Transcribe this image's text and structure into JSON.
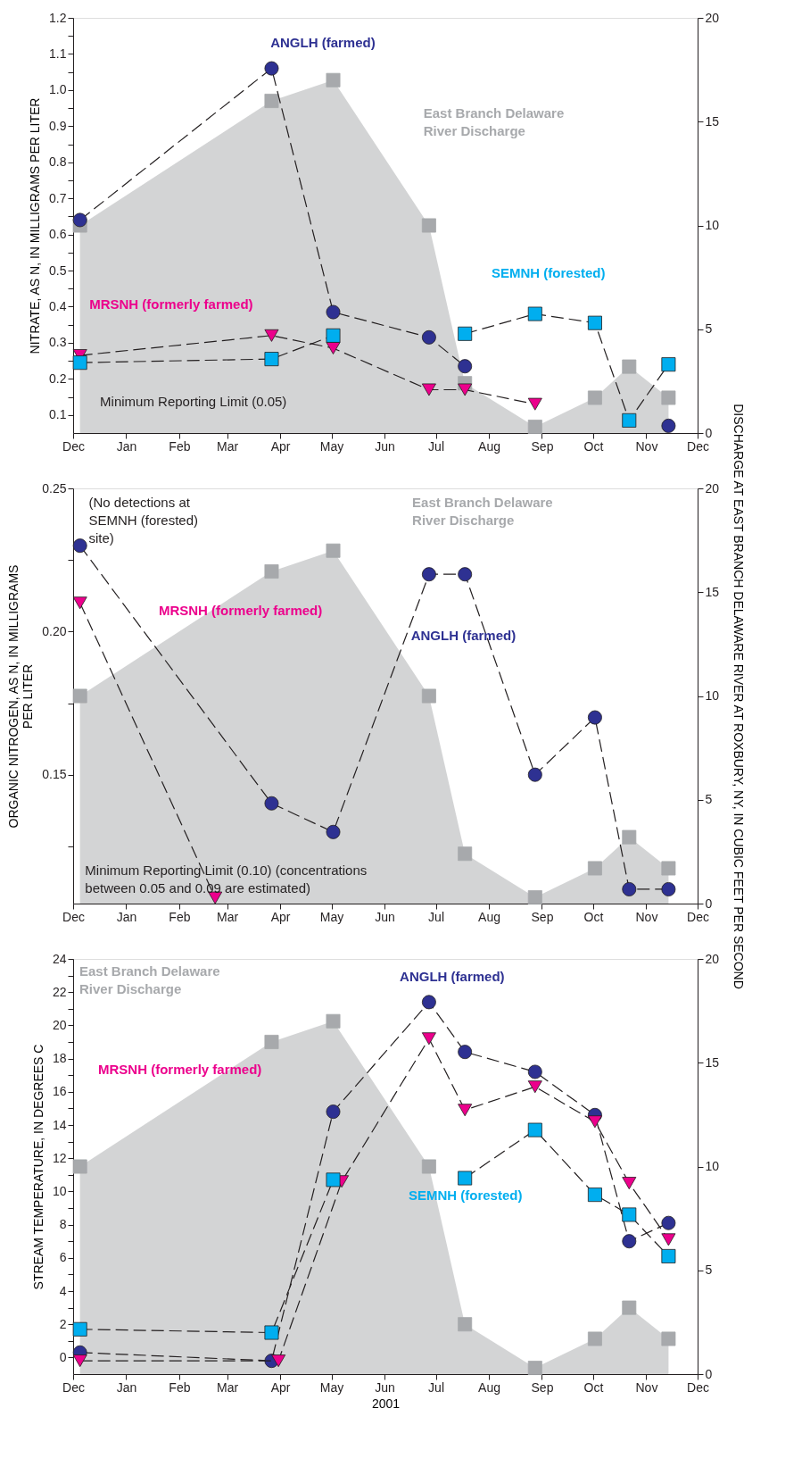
{
  "chart_data": [
    {
      "type": "line",
      "ylabel": "NITRATE, AS N, IN MILLIGRAMS PER LITER",
      "x": [
        "2000-12-05",
        "2001-03-27",
        "2001-05-02",
        "2001-06-27",
        "2001-07-18",
        "2001-08-28",
        "2001-10-02",
        "2001-10-22",
        "2001-11-14"
      ],
      "xlim": [
        "2000-12-01",
        "2001-12-01"
      ],
      "xticks": [
        {
          "value": "2000-12-01",
          "label": "Dec"
        },
        {
          "value": "2001-01-01",
          "label": "Jan"
        },
        {
          "value": "2001-02-01",
          "label": "Feb"
        },
        {
          "value": "2001-03-01",
          "label": "Mar"
        },
        {
          "value": "2001-04-01",
          "label": "Apr"
        },
        {
          "value": "2001-05-01",
          "label": "May"
        },
        {
          "value": "2001-06-01",
          "label": "Jun"
        },
        {
          "value": "2001-07-01",
          "label": "Jul"
        },
        {
          "value": "2001-08-01",
          "label": "Aug"
        },
        {
          "value": "2001-09-01",
          "label": "Sep"
        },
        {
          "value": "2001-10-01",
          "label": "Oct"
        },
        {
          "value": "2001-11-01",
          "label": "Nov"
        },
        {
          "value": "2001-12-01",
          "label": "Dec"
        }
      ],
      "ylim": [
        0.05,
        1.2
      ],
      "yticks": [
        0.1,
        {
          "value": 0.15,
          "label": null
        },
        0.2,
        {
          "value": 0.25,
          "label": null
        },
        0.3,
        {
          "value": 0.35,
          "label": null
        },
        0.4,
        {
          "value": 0.45,
          "label": null
        },
        0.5,
        {
          "value": 0.55,
          "label": null
        },
        0.6,
        {
          "value": 0.65,
          "label": null
        },
        0.7,
        {
          "value": 0.75,
          "label": null
        },
        0.8,
        {
          "value": 0.85,
          "label": null
        },
        0.9,
        {
          "value": 0.95,
          "label": null
        },
        {
          "value": 1.0,
          "label": "1.0"
        },
        {
          "value": 1.05,
          "label": null
        },
        1.1,
        {
          "value": 1.15,
          "label": null
        },
        1.2
      ],
      "y2lim": [
        0,
        20
      ],
      "y2ticks": [
        0,
        5,
        10,
        15,
        20
      ],
      "grid": false,
      "annotations": [
        "Minimum Reporting Limit (0.05)"
      ],
      "series": [
        {
          "name": "East Branch Delaware River Discharge",
          "type": "area",
          "axis": "y2",
          "color": "#a7a9ac",
          "marker": "square",
          "values": [
            10,
            16,
            17,
            10,
            2.4,
            0.3,
            1.7,
            3.2,
            1.7
          ]
        },
        {
          "name": "ANGLH (farmed)",
          "color": "#2e3192",
          "marker": "circle",
          "line_style": "dashed",
          "values": [
            0.64,
            1.06,
            0.385,
            0.315,
            0.235,
            null,
            null,
            null,
            0.07
          ]
        },
        {
          "name": "MRSNH (formerly farmed)",
          "color": "#ec008c",
          "marker": "triangle",
          "line_style": "dashed",
          "values": [
            0.265,
            0.32,
            0.285,
            0.17,
            0.17,
            0.13,
            null,
            null,
            null
          ]
        },
        {
          "name": "SEMNH (forested)",
          "color": "#00aeef",
          "marker": "square",
          "line_style": "dashed",
          "values": [
            0.245,
            0.255,
            0.32,
            null,
            0.325,
            0.38,
            0.355,
            0.085,
            0.24
          ]
        }
      ]
    },
    {
      "type": "line",
      "ylabel": "ORGANIC NITROGEN, AS N, IN MILLIGRAMS PER LITER",
      "y2label": "DISCHARGE AT EAST BRANCH DELAWARE RIVER AT ROXBURY, NY, IN CUBIC FEET PER SECOND",
      "x": [
        "2000-12-05",
        "2001-03-27",
        "2001-05-02",
        "2001-06-27",
        "2001-07-18",
        "2001-08-28",
        "2001-10-02",
        "2001-10-22",
        "2001-11-14"
      ],
      "xlim": [
        "2000-12-01",
        "2001-12-01"
      ],
      "xticks": [
        {
          "value": "2000-12-01",
          "label": "Dec"
        },
        {
          "value": "2001-01-01",
          "label": "Jan"
        },
        {
          "value": "2001-02-01",
          "label": "Feb"
        },
        {
          "value": "2001-03-01",
          "label": "Mar"
        },
        {
          "value": "2001-04-01",
          "label": "Apr"
        },
        {
          "value": "2001-05-01",
          "label": "May"
        },
        {
          "value": "2001-06-01",
          "label": "Jun"
        },
        {
          "value": "2001-07-01",
          "label": "Jul"
        },
        {
          "value": "2001-08-01",
          "label": "Aug"
        },
        {
          "value": "2001-09-01",
          "label": "Sep"
        },
        {
          "value": "2001-10-01",
          "label": "Oct"
        },
        {
          "value": "2001-11-01",
          "label": "Nov"
        },
        {
          "value": "2001-12-01",
          "label": "Dec"
        }
      ],
      "ylim": [
        0.105,
        0.25
      ],
      "yticks": [
        {
          "value": 0.125,
          "label": null
        },
        0.15,
        {
          "value": 0.175,
          "label": null
        },
        {
          "value": 0.2,
          "label": "0.20"
        },
        {
          "value": 0.225,
          "label": null
        },
        0.25
      ],
      "y2lim": [
        0,
        20
      ],
      "y2ticks": [
        0,
        5,
        10,
        15,
        20
      ],
      "grid": false,
      "annotations": [
        "(No detections at SEMNH (forested) site)",
        "Minimum Reporting Limit (0.10) (concentrations between 0.05 and 0.09 are estimated)"
      ],
      "series": [
        {
          "name": "East Branch Delaware River Discharge",
          "type": "area",
          "axis": "y2",
          "color": "#a7a9ac",
          "marker": "square",
          "values": [
            10,
            16,
            17,
            10,
            2.4,
            0.3,
            1.7,
            3.2,
            1.7
          ]
        },
        {
          "name": "ANGLH (farmed)",
          "color": "#2e3192",
          "marker": "circle",
          "line_style": "dashed",
          "values": [
            0.23,
            0.14,
            0.13,
            0.22,
            0.22,
            0.15,
            0.17,
            0.11,
            0.11
          ]
        },
        {
          "name": "MRSNH (formerly farmed)",
          "color": "#ec008c",
          "marker": "triangle",
          "line_style": "dashed",
          "x": [
            "2000-12-05",
            "2001-02-22"
          ],
          "values": [
            0.21,
            0.107
          ]
        }
      ]
    },
    {
      "type": "line",
      "ylabel": "STREAM TEMPERATURE, IN DEGREES C",
      "xlabel": "2001",
      "x": [
        "2000-12-05",
        "2001-03-27",
        "2001-05-02",
        "2001-06-27",
        "2001-07-18",
        "2001-08-28",
        "2001-10-02",
        "2001-10-22",
        "2001-11-14"
      ],
      "xlim": [
        "2000-12-01",
        "2001-12-01"
      ],
      "xticks": [
        {
          "value": "2000-12-01",
          "label": "Dec"
        },
        {
          "value": "2001-01-01",
          "label": "Jan"
        },
        {
          "value": "2001-02-01",
          "label": "Feb"
        },
        {
          "value": "2001-03-01",
          "label": "Mar"
        },
        {
          "value": "2001-04-01",
          "label": "Apr"
        },
        {
          "value": "2001-05-01",
          "label": "May"
        },
        {
          "value": "2001-06-01",
          "label": "Jun"
        },
        {
          "value": "2001-07-01",
          "label": "Jul"
        },
        {
          "value": "2001-08-01",
          "label": "Aug"
        },
        {
          "value": "2001-09-01",
          "label": "Sep"
        },
        {
          "value": "2001-10-01",
          "label": "Oct"
        },
        {
          "value": "2001-11-01",
          "label": "Nov"
        },
        {
          "value": "2001-12-01",
          "label": "Dec"
        }
      ],
      "ylim": [
        -1,
        24
      ],
      "yticks": [
        0,
        {
          "value": 1,
          "label": null
        },
        2,
        {
          "value": 3,
          "label": null
        },
        4,
        {
          "value": 5,
          "label": null
        },
        6,
        {
          "value": 7,
          "label": null
        },
        8,
        {
          "value": 9,
          "label": null
        },
        10,
        {
          "value": 11,
          "label": null
        },
        12,
        {
          "value": 13,
          "label": null
        },
        14,
        {
          "value": 15,
          "label": null
        },
        16,
        {
          "value": 17,
          "label": null
        },
        18,
        {
          "value": 19,
          "label": null
        },
        20,
        {
          "value": 21,
          "label": null
        },
        22,
        {
          "value": 23,
          "label": null
        },
        24
      ],
      "y2lim": [
        0,
        20
      ],
      "y2ticks": [
        0,
        5,
        10,
        15,
        20
      ],
      "grid": false,
      "series": [
        {
          "name": "East Branch Delaware River Discharge",
          "type": "area",
          "axis": "y2",
          "color": "#a7a9ac",
          "marker": "square",
          "values": [
            10,
            16,
            17,
            10,
            2.4,
            0.3,
            1.7,
            3.2,
            1.7
          ]
        },
        {
          "name": "ANGLH (farmed)",
          "color": "#2e3192",
          "marker": "circle",
          "line_style": "dashed",
          "values": [
            0.3,
            -0.2,
            14.8,
            21.4,
            18.4,
            17.2,
            14.6,
            7.0,
            8.1
          ]
        },
        {
          "name": "MRSNH (formerly farmed)",
          "color": "#ec008c",
          "marker": "triangle",
          "line_style": "dashed",
          "x": [
            "2000-12-05",
            "2001-03-31",
            "2001-05-07",
            "2001-06-27",
            "2001-07-18",
            "2001-08-28",
            "2001-10-02",
            "2001-10-22",
            "2001-11-14"
          ],
          "values": [
            -0.2,
            -0.2,
            10.6,
            19.2,
            14.9,
            16.3,
            14.2,
            10.5,
            7.1
          ]
        },
        {
          "name": "SEMNH (forested)",
          "color": "#00aeef",
          "marker": "square",
          "line_style": "dashed",
          "values": [
            1.7,
            1.5,
            10.7,
            null,
            10.8,
            13.7,
            9.8,
            8.6,
            6.1
          ]
        }
      ]
    }
  ]
}
